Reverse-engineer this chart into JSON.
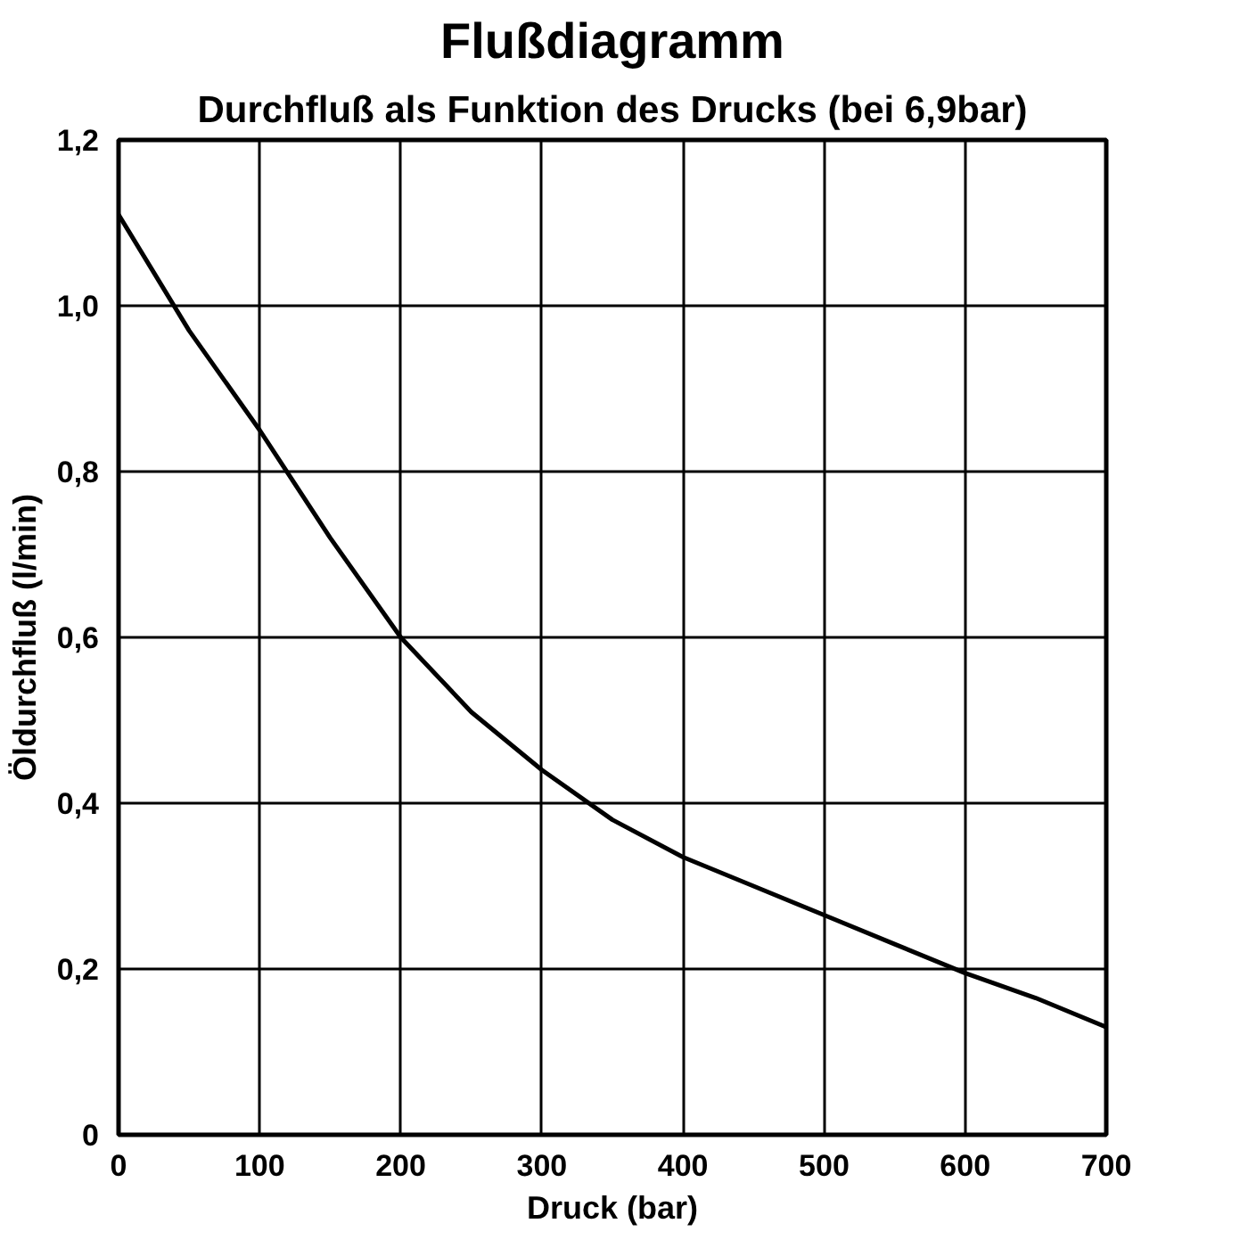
{
  "chart_data": {
    "type": "line",
    "title": "Flußdiagramm",
    "subtitle": "Durchfluß als Funktion des Drucks (bei 6,9bar)",
    "xlabel": "Druck (bar)",
    "ylabel": "Öldurchfluß (l/min)",
    "x": [
      0,
      50,
      100,
      150,
      200,
      250,
      300,
      350,
      400,
      450,
      500,
      550,
      600,
      650,
      700
    ],
    "series": [
      {
        "color": "#000000",
        "values": [
          1.11,
          0.97,
          0.85,
          0.72,
          0.6,
          0.51,
          0.44,
          0.38,
          0.335,
          0.3,
          0.265,
          0.23,
          0.195,
          0.165,
          0.13
        ]
      }
    ],
    "xlim": [
      0,
      700
    ],
    "ylim": [
      0,
      1.2
    ],
    "xticks": [
      0,
      100,
      200,
      300,
      400,
      500,
      600,
      700
    ],
    "yticks": [
      0,
      {
        "value": 0.2,
        "label": "0,2"
      },
      {
        "value": 0.4,
        "label": "0,4"
      },
      {
        "value": 0.6,
        "label": "0,6"
      },
      {
        "value": 0.8,
        "label": "0,8"
      },
      {
        "value": 1.0,
        "label": "1,0"
      },
      {
        "value": 1.2,
        "label": "1,2"
      }
    ],
    "grid": true,
    "marker": "none",
    "line_style": "solid"
  }
}
